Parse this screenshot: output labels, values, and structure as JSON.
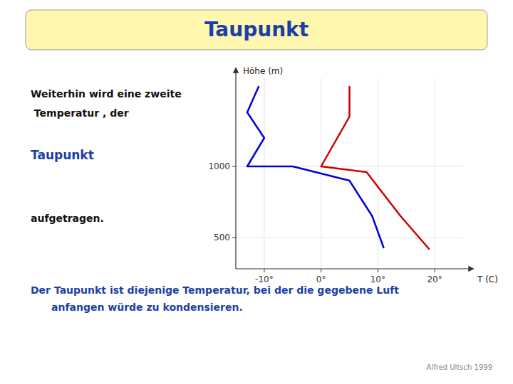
{
  "chart_data": {
    "type": "line",
    "title": "Taupunkt",
    "xlabel": "T (C)",
    "ylabel": "Höhe (m)",
    "xlim": [
      -15,
      25
    ],
    "ylim": [
      280,
      1620
    ],
    "xticks": [
      {
        "value": -10,
        "label": "-10°"
      },
      {
        "value": 0,
        "label": "0°"
      },
      {
        "value": 10,
        "label": "10°"
      },
      {
        "value": 20,
        "label": "20°"
      }
    ],
    "yticks": [
      500,
      1000
    ],
    "series": [
      {
        "color": "#0000DD",
        "x": [
          -11,
          -13,
          -10,
          -13,
          -5,
          5,
          9,
          11
        ],
        "values": [
          1560,
          1380,
          1200,
          1000,
          1000,
          900,
          650,
          430
        ]
      },
      {
        "color": "#CC0000",
        "x": [
          5,
          5,
          0,
          8,
          14,
          19
        ],
        "values": [
          1560,
          1350,
          1000,
          960,
          650,
          420
        ]
      }
    ],
    "annotations": [
      "Weiterhin wird eine zweite",
      " Temperatur , der",
      "Taupunkt",
      "aufgetragen.",
      "Der Taupunkt ist diejenige Temperatur, bei der die gegebene Luft",
      "anfangen würde zu kondensieren.",
      "Alfred Ultsch 1999"
    ]
  }
}
